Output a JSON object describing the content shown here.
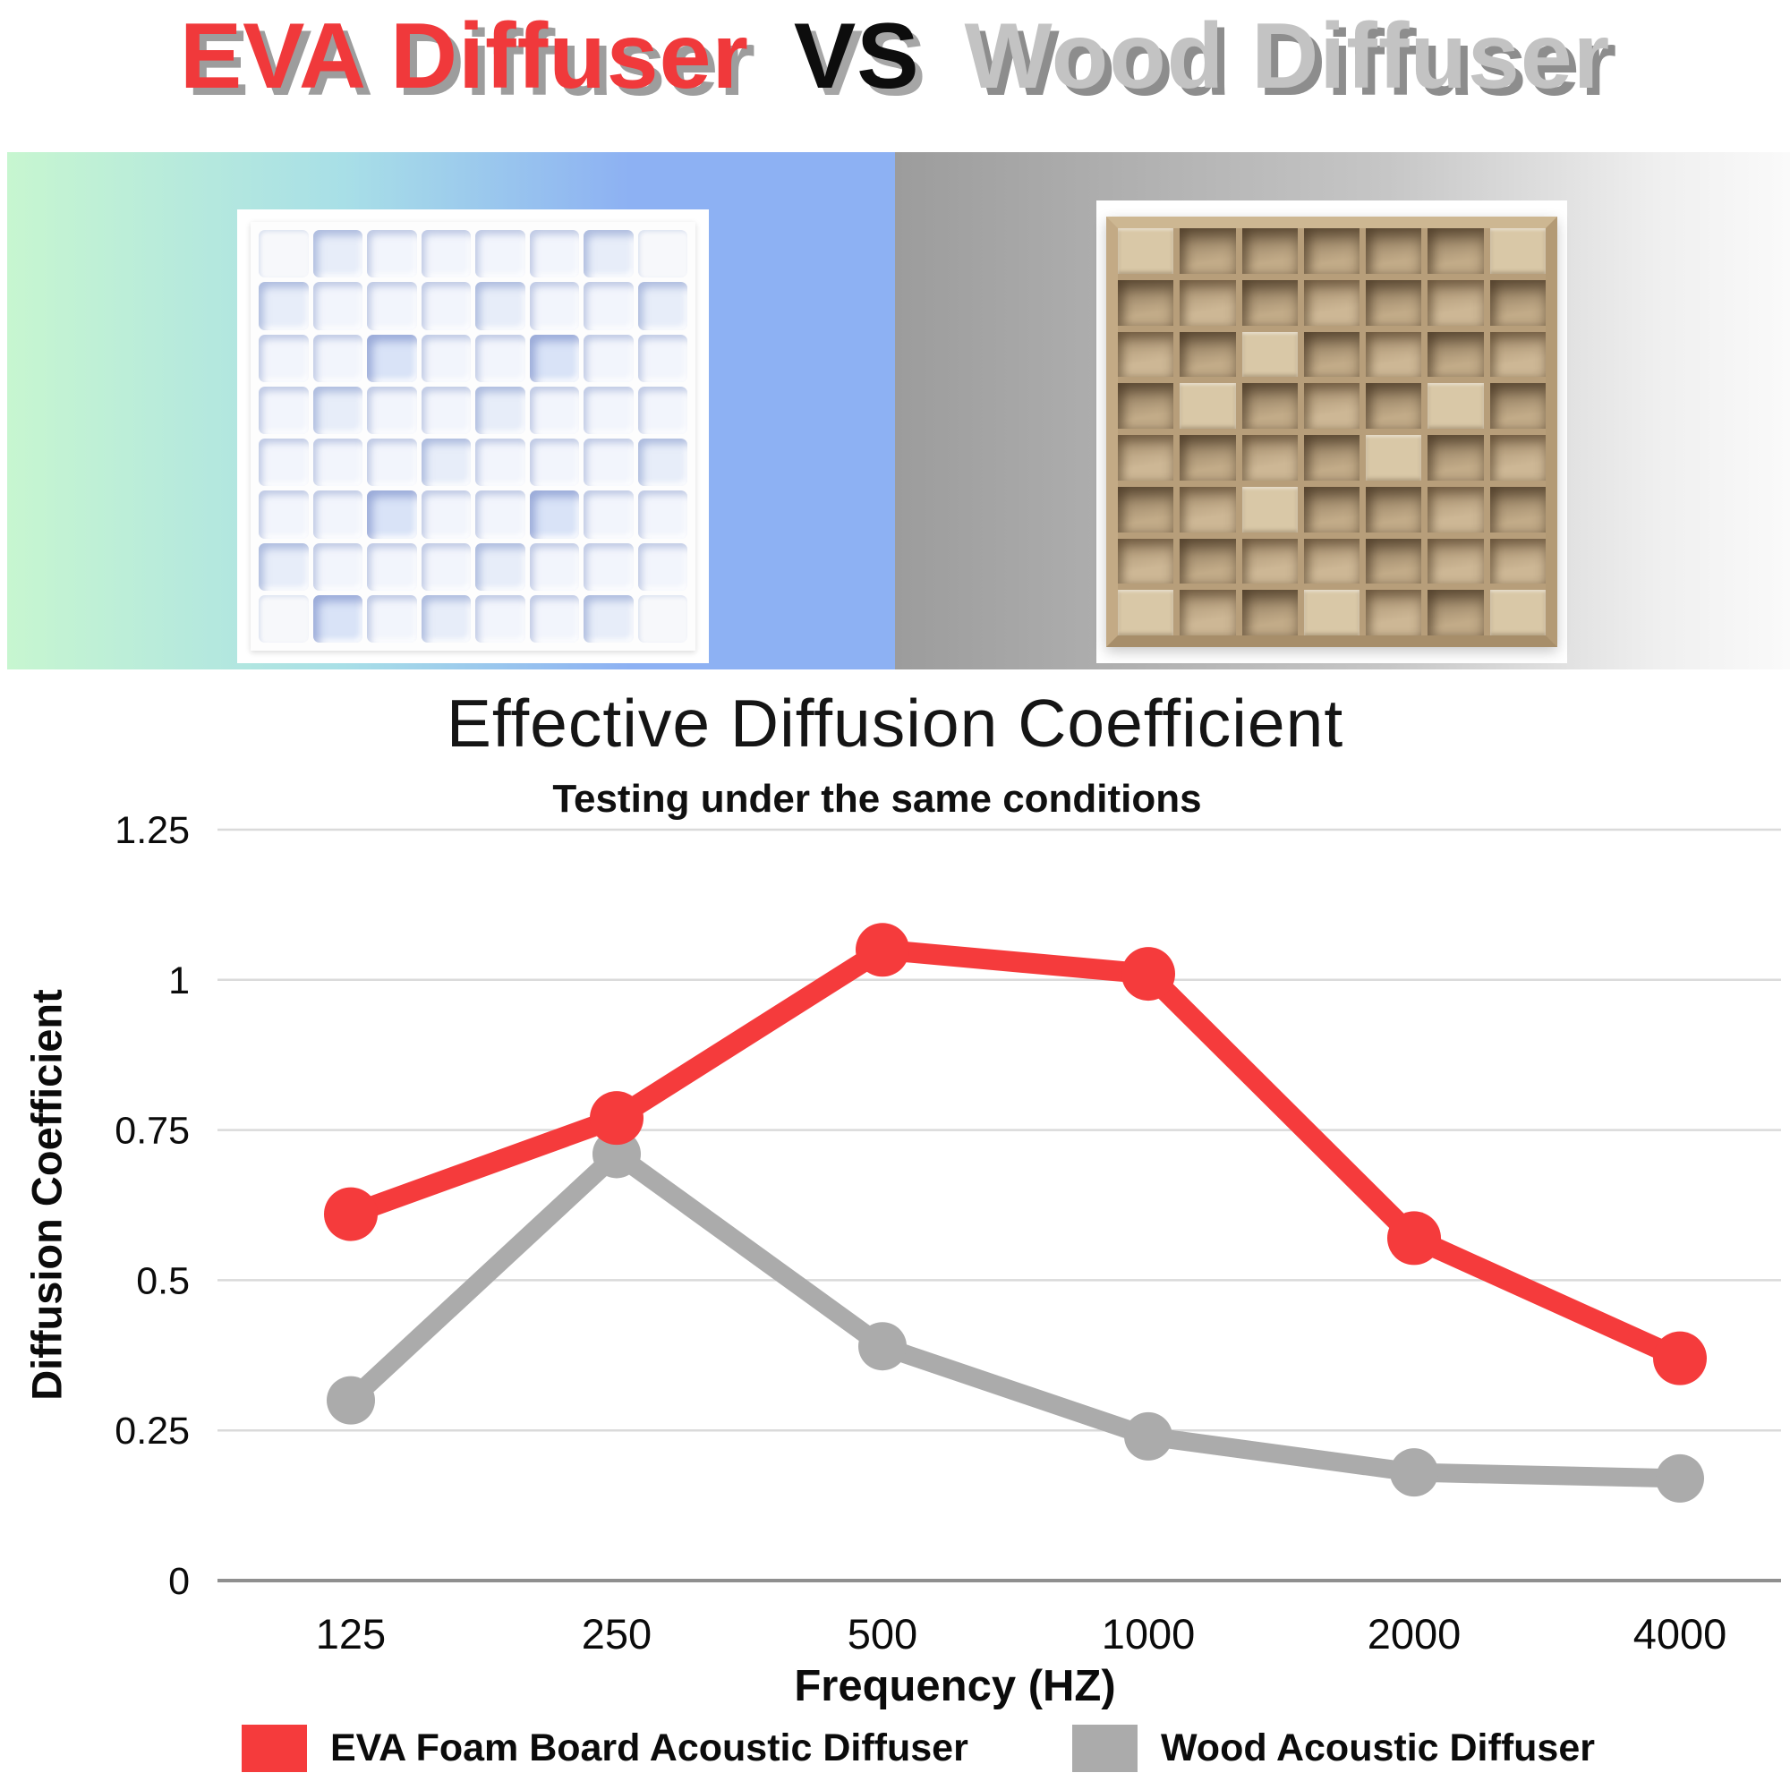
{
  "header": {
    "title_eva": "EVA Diffuser",
    "title_vs": "VS",
    "title_wood": "Wood Diffuser"
  },
  "chart_data": {
    "type": "line",
    "title": "Effective Diffusion Coefficient",
    "subtitle": "Testing under the same conditions",
    "xlabel": "Frequency (HZ)",
    "ylabel": "Diffusion Coefficient",
    "categories": [
      "125",
      "250",
      "500",
      "1000",
      "2000",
      "4000"
    ],
    "y_tick_labels": [
      "0",
      "0.25",
      "0.5",
      "0.75",
      "1",
      "1.25"
    ],
    "ylim": [
      0,
      1.25
    ],
    "grid": true,
    "legend_position": "bottom",
    "series": [
      {
        "name": "EVA Foam Board Acoustic Diffuser",
        "color": "#f53b3c",
        "values": [
          0.61,
          0.77,
          1.05,
          1.01,
          0.57,
          0.37
        ]
      },
      {
        "name": "Wood Acoustic Diffuser",
        "color": "#ababab",
        "values": [
          0.3,
          0.71,
          0.39,
          0.24,
          0.18,
          0.17
        ]
      }
    ]
  }
}
